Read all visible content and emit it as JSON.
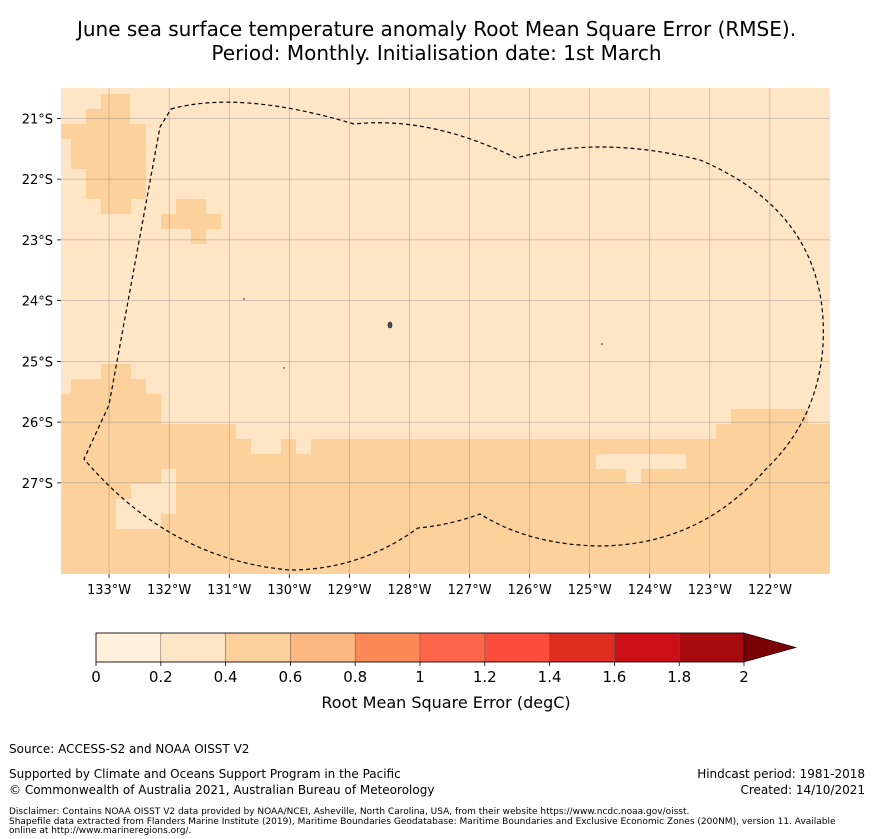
{
  "title_line1": "June sea surface temperature anomaly Root Mean Square Error (RMSE).",
  "title_line2": "Period: Monthly. Initialisation date: 1st March",
  "chart_data": {
    "type": "heatmap",
    "variable": "Root Mean Square Error (degC)",
    "lon_ticks": [
      "133°W",
      "132°W",
      "131°W",
      "130°W",
      "129°W",
      "128°W",
      "127°W",
      "126°W",
      "125°W",
      "124°W",
      "123°W",
      "122°W"
    ],
    "lat_ticks": [
      "21°S",
      "22°S",
      "23°S",
      "24°S",
      "25°S",
      "26°S",
      "27°S"
    ],
    "lon_range": [
      -133.8,
      -121.0
    ],
    "lat_range": [
      -28.5,
      -20.5
    ],
    "grid": true,
    "levels": [
      0,
      0.2,
      0.4,
      0.6,
      0.8,
      1,
      1.2,
      1.4,
      1.6,
      1.8,
      2
    ],
    "level_labels": [
      "0",
      "0.2",
      "0.4",
      "0.6",
      "0.8",
      "1",
      "1.2",
      "1.4",
      "1.6",
      "1.8",
      "2"
    ],
    "colors": [
      "#fff0dc",
      "#fee5c6",
      "#fdd19c",
      "#fdb780",
      "#fc8a58",
      "#fd664b",
      "#fb4c3c",
      "#df2e21",
      "#cc0f17",
      "#a80b0e",
      "#7a0205"
    ],
    "extend": "max",
    "regions": [
      {
        "range": "0.2-0.4",
        "area": "central region (most of domain)"
      },
      {
        "range": "0.4-0.6",
        "area": "southern band south of ~26°S, western edges"
      },
      {
        "range": "0.0-0.2",
        "area": "none visible"
      }
    ],
    "colorbar_label": "Root Mean Square Error (degC)"
  },
  "footer": {
    "source": "Source: ACCESS-S2 and NOAA OISST V2",
    "support": "Supported by Climate and Oceans Support Program in the Pacific",
    "copyright": "© Commonwealth of Australia 2021, Australian Bureau of Meteorology",
    "hindcast": "Hindcast period: 1981-2018",
    "created": "Created: 14/10/2021",
    "disclaimer1": "Disclaimer: Contains NOAA OISST V2 data provided by NOAA/NCEI, Asheville, North Carolina, USA, from their website https://www.ncdc.noaa.gov/oisst.",
    "disclaimer2": "Shapefile data extracted from Flanders Marine Institute (2019), Maritime Boundaries Geodatabase: Maritime Boundaries and Exclusive Economic Zones (200NM), version 11. Available",
    "disclaimer3": "online at http://www.marineregions.org/."
  }
}
